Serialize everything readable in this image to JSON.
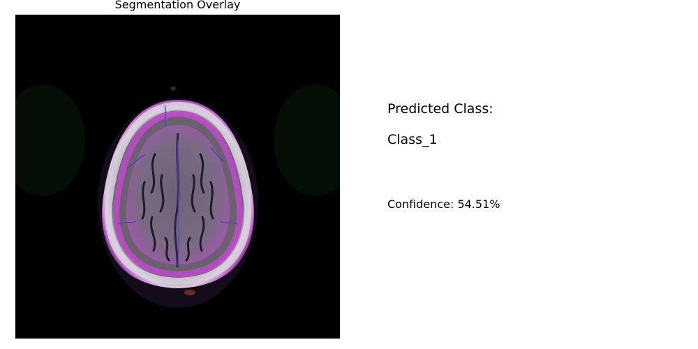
{
  "overlay": {
    "title": "Segmentation Overlay"
  },
  "prediction": {
    "label": "Predicted Class:",
    "class_name": "Class_1",
    "confidence_text": "Confidence: 54.51%"
  },
  "colors": {
    "background": "#ffffff",
    "image_background": "#000000",
    "overlay_magenta": "#c040c8",
    "overlay_blue": "#4a3cc8",
    "skull_white": "#e8e4ec",
    "tissue_gray": "#7a6e80"
  }
}
